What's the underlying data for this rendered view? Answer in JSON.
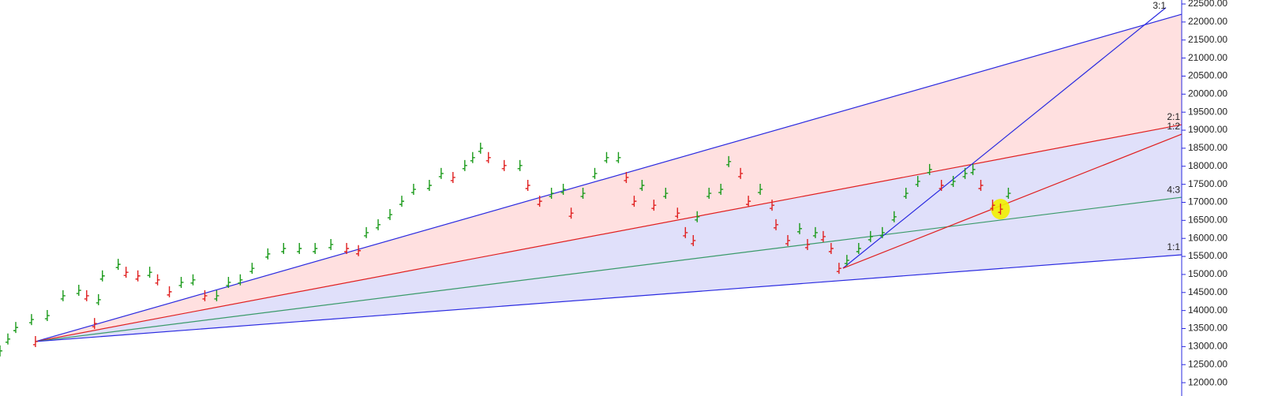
{
  "chart_data": {
    "type": "bar-chart-fan",
    "xlim": [
      0,
      300
    ],
    "ylim": [
      11630,
      22610
    ],
    "yticks": [
      {
        "value": 12000,
        "label": "12000.00"
      },
      {
        "value": 12500,
        "label": "12500.00"
      },
      {
        "value": 13000,
        "label": "13000.00"
      },
      {
        "value": 13500,
        "label": "13500.00"
      },
      {
        "value": 14000,
        "label": "14000.00"
      },
      {
        "value": 14500,
        "label": "14500.00"
      },
      {
        "value": 15000,
        "label": "15000.00"
      },
      {
        "value": 15500,
        "label": "15500.00"
      },
      {
        "value": 16000,
        "label": "16000.00"
      },
      {
        "value": 16500,
        "label": "16500.00"
      },
      {
        "value": 17000,
        "label": "17000.00"
      },
      {
        "value": 17500,
        "label": "17500.00"
      },
      {
        "value": 18000,
        "label": "18000.00"
      },
      {
        "value": 18500,
        "label": "18500.00"
      },
      {
        "value": 19000,
        "label": "19000.00"
      },
      {
        "value": 19500,
        "label": "19500.00"
      },
      {
        "value": 20000,
        "label": "20000.00"
      },
      {
        "value": 20500,
        "label": "20500.00"
      },
      {
        "value": 21000,
        "label": "21000.00"
      },
      {
        "value": 21500,
        "label": "21500.00"
      },
      {
        "value": 22000,
        "label": "22000.00"
      },
      {
        "value": 22500,
        "label": "22500.00"
      }
    ],
    "up_color": "#1a9a1a",
    "down_color": "#e02020",
    "x": [
      0,
      2,
      4,
      8,
      9,
      12,
      16,
      20,
      22,
      24,
      25,
      26,
      30,
      32,
      35,
      38,
      40,
      43,
      46,
      49,
      52,
      55,
      58,
      61,
      64,
      68,
      72,
      76,
      80,
      84,
      88,
      91,
      93,
      96,
      99,
      102,
      105,
      109,
      112,
      115,
      118,
      120,
      122,
      124,
      128,
      132,
      134,
      137,
      140,
      143,
      145,
      148,
      151,
      154,
      157,
      159,
      161,
      163,
      166,
      169,
      172,
      174,
      176,
      177,
      180,
      183,
      185,
      188,
      190,
      193,
      196,
      197,
      200,
      203,
      205,
      207,
      209,
      211,
      213,
      215,
      218,
      221,
      224,
      227,
      230,
      233,
      236,
      239,
      242,
      245,
      247,
      249,
      252,
      254,
      256
    ],
    "values": [
      12880,
      13210,
      13530,
      13750,
      13140,
      13860,
      14410,
      14560,
      14410,
      13640,
      14300,
      14960,
      15280,
      15060,
      14960,
      15060,
      14850,
      14520,
      14780,
      14850,
      14410,
      14410,
      14780,
      14850,
      15170,
      15570,
      15720,
      15720,
      15720,
      15830,
      15720,
      15660,
      16160,
      16380,
      16660,
      17030,
      17360,
      17470,
      17800,
      17690,
      18020,
      18240,
      18500,
      18240,
      18020,
      18020,
      17470,
      17030,
      17250,
      17360,
      16700,
      17250,
      17800,
      18240,
      18240,
      17690,
      17030,
      17470,
      16920,
      17250,
      16700,
      16160,
      15940,
      16600,
      17250,
      17360,
      18130,
      17800,
      17030,
      17360,
      16920,
      16380,
      15940,
      16270,
      15830,
      16160,
      16050,
      15720,
      15170,
      15390,
      15720,
      16050,
      16160,
      16600,
      17250,
      17580,
      17910,
      17470,
      17580,
      17800,
      17910,
      17470,
      16920,
      16810,
      17250
    ],
    "fans": [
      {
        "origin_x": 9,
        "origin_y": 13140,
        "bands": [
          "#ffe0e0",
          "#e0e0fa",
          "#e0e0fa"
        ],
        "lines": [
          {
            "end_x": 300,
            "end_y": 22215,
            "color": "#2a2ae0"
          },
          {
            "end_x": 300,
            "end_y": 19153,
            "color": "#e02020",
            "label": "2:1"
          },
          {
            "end_x": 300,
            "end_y": 17140,
            "color": "#3a9a6a",
            "label": "4:3"
          },
          {
            "end_x": 300,
            "end_y": 15545,
            "color": "#2a2ae0",
            "label": "1:1"
          }
        ]
      },
      {
        "origin_x": 214,
        "origin_y": 15173,
        "lines": [
          {
            "end_x": 296,
            "end_y": 22400,
            "color": "#2a2ae0",
            "label": "3:1"
          },
          {
            "end_x": 300,
            "end_y": 18890,
            "color": "#e02020",
            "label": "1:2"
          }
        ]
      }
    ],
    "highlight": {
      "x": 254,
      "y": 16810,
      "color": "#f2f000"
    }
  }
}
